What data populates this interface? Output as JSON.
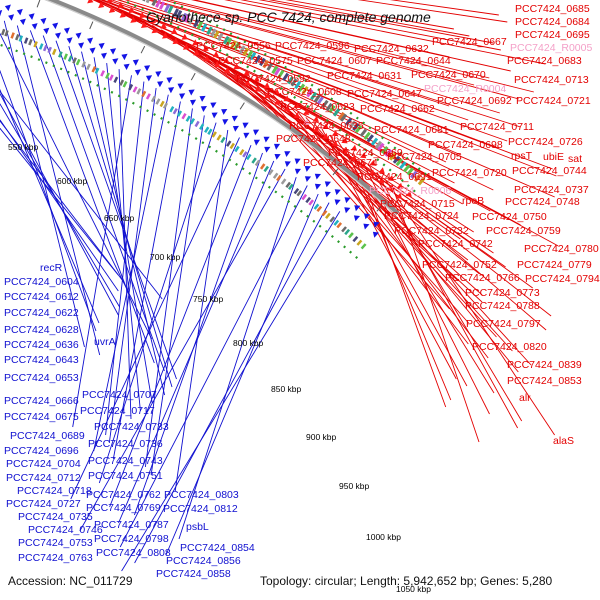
{
  "title": "Cyanothece sp. PCC 7424, complete genome",
  "accession": "Accession: NC_011729",
  "summary": "Topology: circular; Length: 5,942,652 bp; Genes: 5,280",
  "kbp_ticks": [
    "550 kbp",
    "600 kbp",
    "650 kbp",
    "700 kbp",
    "750 kbp",
    "800 kbp",
    "850 kbp",
    "900 kbp",
    "950 kbp",
    "1000 kbp",
    "1050 kbp"
  ],
  "colors": {
    "forward": "#ff1a1a",
    "reverse": "#1414e6",
    "rna": "#f4a0c8",
    "backbone": "#8a8a8a",
    "ring": "#2a9a2a"
  },
  "labels_red": [
    "PCC7424_0685",
    "PCC7424_0684",
    "PCC7424_0695",
    "PCC7424_R0005",
    "PCC7424_0667",
    "PCC7424_0683",
    "PCC7424_0556",
    "PCC7424_0596",
    "PCC7424_0632",
    "PCC7424_0575",
    "PCC7424_0607",
    "PCC7424_0644",
    "PCC7424_0592",
    "PCC7424_0631",
    "PCC7424_0670",
    "PCC7424_0713",
    "PCC7424_R0004",
    "PCC7424_0608",
    "PCC7424_0647",
    "PCC7424_0692",
    "PCC7424_0721",
    "PCC7424_0623",
    "PCC7424_0662",
    "PCC7424_0711",
    "PCC7424_0635",
    "PCC7424_0681",
    "PCC7424_0648",
    "PCC7424_0698",
    "PCC7424_0726",
    "PCC7424_0669",
    "rpsT",
    "ubiE",
    "sat",
    "PCC7424_0674",
    "PCC7424_0705",
    "PCC7424_0720",
    "PCC7424_0744",
    "PCC7424_0691",
    "PCC7424_0737",
    "PCC7424_R0006",
    "PCC7424_0748",
    "PCC7424_0715",
    "rpoB",
    "PCC7424_0724",
    "PCC7424_0750",
    "PCC7424_0732",
    "PCC7424_0759",
    "PCC7424_0742",
    "PCC7424_0780",
    "PCC7424_0752",
    "PCC7424_0779",
    "PCC7424_0766",
    "PCC7424_0794",
    "PCC7424_0773",
    "PCC7424_0788",
    "PCC7424_0797",
    "PCC7424_0820",
    "PCC7424_0839",
    "PCC7424_0853",
    "alr",
    "alaS"
  ],
  "labels_blue": [
    "recR",
    "PCC7424_0604",
    "PCC7424_0612",
    "PCC7424_0622",
    "PCC7424_0628",
    "uvrA",
    "PCC7424_0636",
    "PCC7424_0643",
    "PCC7424_0653",
    "PCC7424_0707",
    "PCC7424_0666",
    "PCC7424_0717",
    "PCC7424_0675",
    "PCC7424_0733",
    "PCC7424_0689",
    "PCC7424_0736",
    "PCC7424_0696",
    "PCC7424_0743",
    "PCC7424_0704",
    "PCC7424_0751",
    "PCC7424_0712",
    "PCC7424_0718",
    "PCC7424_0762",
    "PCC7424_0803",
    "PCC7424_0727",
    "PCC7424_0769",
    "PCC7424_0812",
    "PCC7424_0735",
    "PCC7424_0787",
    "PCC7424_0746",
    "psbL",
    "PCC7424_0798",
    "PCC7424_0753",
    "PCC7424_0808",
    "PCC7424_0854",
    "PCC7424_0763",
    "PCC7424_0856",
    "PCC7424_0858"
  ]
}
